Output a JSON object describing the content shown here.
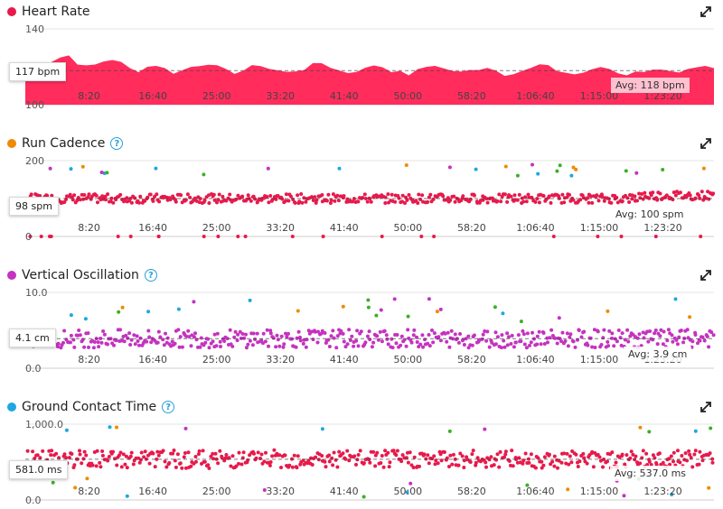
{
  "panels": [
    {
      "id": "hr",
      "title": "Heart Rate",
      "color": "#e8194b",
      "help": false,
      "y_ticks": [
        "140",
        "100"
      ],
      "current": "117 bpm",
      "avg": "Avg: 118 bpm",
      "x_ticks": [
        "8:20",
        "16:40",
        "25:00",
        "33:20",
        "41:40",
        "50:00",
        "58:20",
        "1:06:40",
        "1:15:00",
        "1:23:20"
      ]
    },
    {
      "id": "cad",
      "title": "Run Cadence",
      "color": "#f08a00",
      "help": true,
      "y_ticks": [
        "200",
        "0"
      ],
      "current": "98 spm",
      "avg": "Avg: 100 spm",
      "x_ticks": [
        "8:20",
        "16:40",
        "25:00",
        "33:20",
        "41:40",
        "50:00",
        "58:20",
        "1:06:40",
        "1:15:00",
        "1:23:20"
      ]
    },
    {
      "id": "vo",
      "title": "Vertical Oscillation",
      "color": "#c532c0",
      "help": true,
      "y_ticks": [
        "10.0",
        "0.0"
      ],
      "current": "4.1 cm",
      "avg": "Avg: 3.9 cm",
      "x_ticks": [
        "8:20",
        "16:40",
        "25:00",
        "33:20",
        "41:40",
        "50:00",
        "58:20",
        "1:06:40",
        "1:15:00",
        "1:23:20"
      ]
    },
    {
      "id": "gct",
      "title": "Ground Contact Time",
      "color": "#1ea7e1",
      "help": true,
      "y_ticks": [
        "1,000.0",
        "0.0"
      ],
      "current": "581.0 ms",
      "avg": "Avg: 537.0 ms",
      "x_ticks": [
        "8:20",
        "16:40",
        "25:00",
        "33:20",
        "41:40",
        "50:00",
        "58:20",
        "1:06:40",
        "1:15:00",
        "1:23:20"
      ]
    }
  ],
  "chart_data": [
    {
      "type": "area",
      "title": "Heart Rate",
      "ylim": [
        100,
        140
      ],
      "avg": 118,
      "current": 117,
      "unit": "bpm",
      "fill_color": "#ff2c5c",
      "x_label_start_seconds": 500,
      "x_label_step_seconds": 500,
      "duration_seconds": 5400,
      "values": [
        118,
        119,
        120,
        123,
        125,
        126,
        122,
        120,
        121,
        123,
        124,
        122,
        119,
        118,
        120,
        121,
        119,
        117,
        118,
        120,
        121,
        122,
        120,
        118,
        117,
        118,
        120,
        121,
        119,
        118,
        117,
        118,
        119,
        121,
        122,
        120,
        118,
        117,
        118,
        119,
        121,
        120,
        118,
        117,
        116,
        118,
        120,
        121,
        119,
        118,
        117,
        118,
        119,
        120,
        118,
        116,
        117,
        118,
        119,
        121,
        120,
        118,
        117,
        116,
        117,
        118,
        120,
        119,
        117,
        116,
        117,
        118,
        119,
        118,
        117,
        116,
        118,
        119,
        120,
        119
      ]
    },
    {
      "type": "scatter",
      "title": "Run Cadence",
      "ylim": [
        0,
        200
      ],
      "avg": 100,
      "current": 98,
      "unit": "spm",
      "color": "#e8194b"
    },
    {
      "type": "scatter",
      "title": "Vertical Oscillation",
      "ylim": [
        0,
        10
      ],
      "avg": 3.9,
      "current": 4.1,
      "unit": "cm",
      "color": "#c532c0"
    },
    {
      "type": "scatter",
      "title": "Ground Contact Time",
      "ylim": [
        0,
        1000
      ],
      "avg": 537,
      "current": 581,
      "unit": "ms",
      "color": "#e8194b"
    }
  ]
}
